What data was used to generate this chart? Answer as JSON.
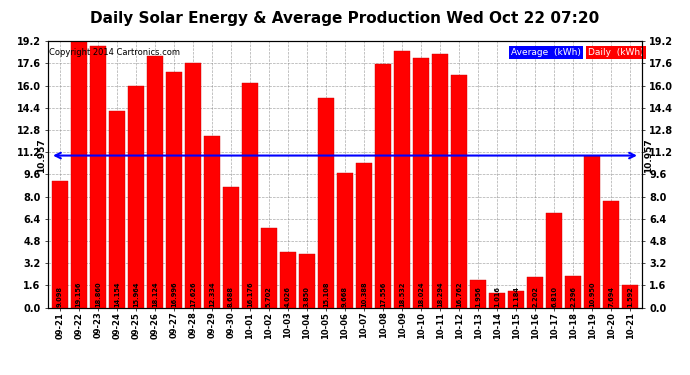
{
  "title": "Daily Solar Energy & Average Production Wed Oct 22 07:20",
  "copyright": "Copyright 2014 Cartronics.com",
  "categories": [
    "09-21",
    "09-22",
    "09-23",
    "09-24",
    "09-25",
    "09-26",
    "09-27",
    "09-28",
    "09-29",
    "09-30",
    "10-01",
    "10-02",
    "10-03",
    "10-04",
    "10-05",
    "10-06",
    "10-07",
    "10-08",
    "10-09",
    "10-10",
    "10-11",
    "10-12",
    "10-13",
    "10-14",
    "10-15",
    "10-16",
    "10-17",
    "10-18",
    "10-19",
    "10-20",
    "10-21"
  ],
  "values": [
    9.098,
    19.156,
    18.86,
    14.154,
    15.964,
    18.124,
    16.996,
    17.626,
    12.334,
    8.688,
    16.176,
    5.702,
    4.026,
    3.85,
    15.108,
    9.668,
    10.388,
    17.556,
    18.532,
    18.024,
    18.294,
    16.762,
    1.956,
    1.016,
    1.184,
    2.202,
    6.81,
    2.296,
    10.95,
    7.694,
    1.592
  ],
  "value_labels": [
    "9.098",
    "19.156",
    "18.860",
    "14.154",
    "15.964",
    "18.124",
    "16.996",
    "17.626",
    "12.334",
    "8.688",
    "16.176",
    "5.702",
    "4.026",
    "3.850",
    "15.108",
    "9.668",
    "10.388",
    "17.556",
    "18.532",
    "18.024",
    "18.294",
    "16.762",
    "1.956",
    "1.016",
    "1.184",
    "2.202",
    "6.810",
    "2.296",
    "10.950",
    "7.694",
    "1.592"
  ],
  "average": 10.957,
  "bar_color": "#FF0000",
  "average_line_color": "#0000FF",
  "background_color": "#FFFFFF",
  "plot_bg_color": "#FFFFFF",
  "grid_color": "#888888",
  "ylim": [
    0.0,
    19.2
  ],
  "yticks": [
    0.0,
    1.6,
    3.2,
    4.8,
    6.4,
    8.0,
    9.6,
    11.2,
    12.8,
    14.4,
    16.0,
    17.6,
    19.2
  ],
  "ytick_labels": [
    "0.0",
    "1.6",
    "3.2",
    "4.8",
    "6.4",
    "8.0",
    "9.6",
    "11.2",
    "12.8",
    "14.4",
    "16.0",
    "17.6",
    "19.2"
  ],
  "title_fontsize": 11,
  "avg_label": "10.957",
  "legend_avg_bg": "#0000FF",
  "legend_daily_bg": "#FF0000",
  "legend_avg_text": "Average  (kWh)",
  "legend_daily_text": "Daily  (kWh)"
}
